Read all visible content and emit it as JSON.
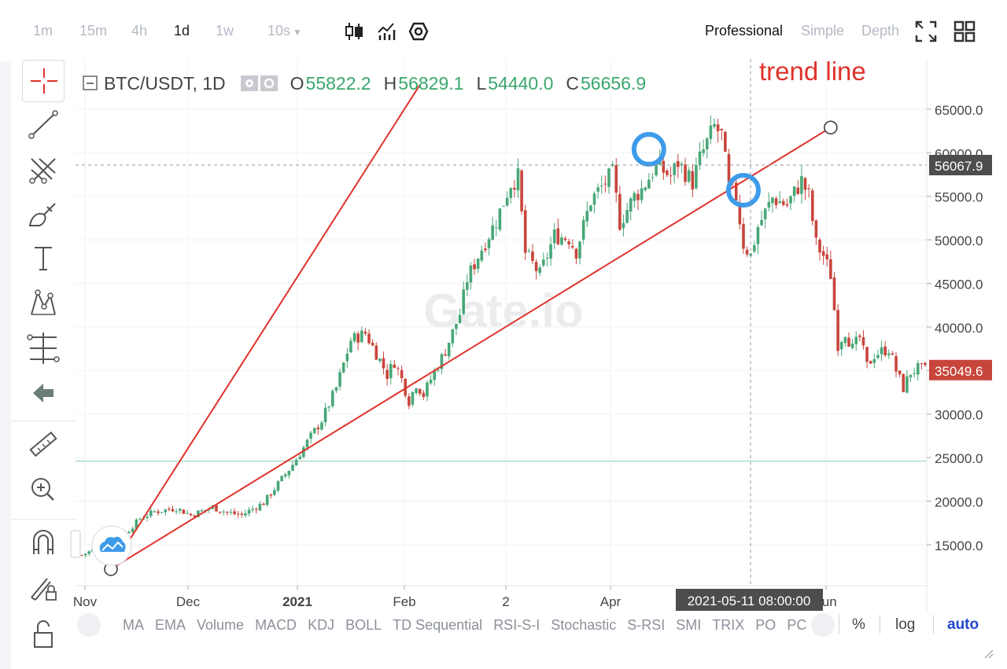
{
  "toolbar": {
    "timeframes": [
      "1m",
      "15m",
      "4h",
      "1d",
      "1w",
      "10s"
    ],
    "active_timeframe": "1d",
    "chart_icons": [
      "candles-icon",
      "indicator-icon",
      "settings-hex-icon"
    ],
    "modes": [
      "Professional",
      "Simple",
      "Depth"
    ],
    "active_mode": "Professional",
    "right_icons": [
      "fullscreen-icon",
      "grid-layout-icon"
    ]
  },
  "drawing_tools": [
    "crosshair-icon",
    "trend-line-icon",
    "fork-icon",
    "brush-icon",
    "text-icon",
    "pattern-icon",
    "fib-icon",
    "back-arrow-icon",
    "ruler-icon",
    "zoom-in-icon",
    "magnet-icon",
    "lock-pencil-icon",
    "unlock-icon"
  ],
  "legend": {
    "symbol": "BTC/USDT, 1D",
    "o_label": "O",
    "o_value": "55822.2",
    "h_label": "H",
    "h_value": "56829.1",
    "l_label": "L",
    "l_value": "54440.0",
    "c_label": "C",
    "c_value": "56656.9"
  },
  "annotation_text": "trend line",
  "watermark": "Gate.io",
  "crosshair": {
    "price": "56067.9",
    "date": "2021-05-11 08:00:00"
  },
  "last_price": {
    "value": "35049.6",
    "color": "#c8453c"
  },
  "indicators": [
    "MA",
    "EMA",
    "Volume",
    "MACD",
    "KDJ",
    "BOLL",
    "TD Sequential",
    "RSI-S-I",
    "Stochastic",
    "S-RSI",
    "SMI",
    "TRIX",
    "PO",
    "PC"
  ],
  "scale_options": {
    "pct": "%",
    "log": "log",
    "auto": "auto"
  },
  "colors": {
    "up": "#48a777",
    "down": "#c8453c",
    "trend": "#e0322a",
    "marker": "#3d9be9"
  },
  "chart_data": {
    "type": "candlestick",
    "symbol": "BTC/USDT",
    "interval": "1D",
    "x_tick_labels": [
      "Nov",
      "Dec",
      "2021",
      "Feb",
      "2",
      "Apr",
      "Jun"
    ],
    "y_ticks": [
      15000,
      20000,
      25000,
      30000,
      35000,
      40000,
      45000,
      50000,
      55000,
      60000,
      65000
    ],
    "y_tick_labels": [
      "15000.0",
      "20000.0",
      "25000.0",
      "30000.0",
      "35000.0",
      "40000.0",
      "45000.0",
      "50000.0",
      "55000.0",
      "60000.0",
      "65000.0"
    ],
    "ylim": [
      10300,
      70500
    ],
    "x_range_days": [
      0,
      232
    ],
    "trend_lines": [
      {
        "label": "trend line",
        "points": [
          {
            "day": 8,
            "price": 12200
          },
          {
            "day": 51,
            "price": 29800
          },
          {
            "day": 93,
            "price": 67800
          }
        ]
      },
      {
        "label": "trend line",
        "points": [
          {
            "day": 8,
            "price": 12200
          },
          {
            "day": 206,
            "price": 62900
          }
        ]
      }
    ],
    "highlighted_points": [
      {
        "day": 156,
        "price": 60400
      },
      {
        "day": 182,
        "price": 55700
      }
    ],
    "horizontal_level": 24600,
    "path_points": [
      [
        0,
        13800
      ],
      [
        4,
        14600
      ],
      [
        8,
        15500
      ],
      [
        12,
        16300
      ],
      [
        16,
        18000
      ],
      [
        20,
        18800
      ],
      [
        26,
        19200
      ],
      [
        30,
        18400
      ],
      [
        36,
        19300
      ],
      [
        40,
        18700
      ],
      [
        44,
        18400
      ],
      [
        46,
        18900
      ],
      [
        50,
        19800
      ],
      [
        54,
        22000
      ],
      [
        58,
        24200
      ],
      [
        62,
        26800
      ],
      [
        66,
        29300
      ],
      [
        70,
        33000
      ],
      [
        74,
        38500
      ],
      [
        78,
        39300
      ],
      [
        82,
        36200
      ],
      [
        84,
        34500
      ],
      [
        86,
        36000
      ],
      [
        88,
        34000
      ],
      [
        90,
        31500
      ],
      [
        92,
        33500
      ],
      [
        94,
        32200
      ],
      [
        96,
        34000
      ],
      [
        100,
        37300
      ],
      [
        104,
        41500
      ],
      [
        106,
        45500
      ],
      [
        110,
        49000
      ],
      [
        114,
        52200
      ],
      [
        118,
        56500
      ],
      [
        120,
        57200
      ],
      [
        122,
        48500
      ],
      [
        126,
        46000
      ],
      [
        130,
        50500
      ],
      [
        134,
        50200
      ],
      [
        136,
        48700
      ],
      [
        140,
        54500
      ],
      [
        144,
        56600
      ],
      [
        146,
        57600
      ],
      [
        148,
        52000
      ],
      [
        152,
        55000
      ],
      [
        154,
        55800
      ],
      [
        158,
        58500
      ],
      [
        162,
        57300
      ],
      [
        164,
        58900
      ],
      [
        168,
        56600
      ],
      [
        170,
        59300
      ],
      [
        174,
        63000
      ],
      [
        176,
        62000
      ],
      [
        178,
        56000
      ],
      [
        180,
        55000
      ],
      [
        182,
        49500
      ],
      [
        184,
        48200
      ],
      [
        186,
        51500
      ],
      [
        190,
        54800
      ],
      [
        194,
        54000
      ],
      [
        198,
        56800
      ],
      [
        200,
        55000
      ],
      [
        202,
        49500
      ],
      [
        204,
        48200
      ],
      [
        206,
        46000
      ],
      [
        208,
        38000
      ],
      [
        210,
        39500
      ],
      [
        212,
        37500
      ],
      [
        214,
        38800
      ],
      [
        216,
        35500
      ],
      [
        218,
        36800
      ],
      [
        220,
        37200
      ],
      [
        222,
        37500
      ],
      [
        224,
        35000
      ],
      [
        226,
        33000
      ],
      [
        228,
        34800
      ],
      [
        230,
        35200
      ],
      [
        232,
        35050
      ]
    ]
  }
}
